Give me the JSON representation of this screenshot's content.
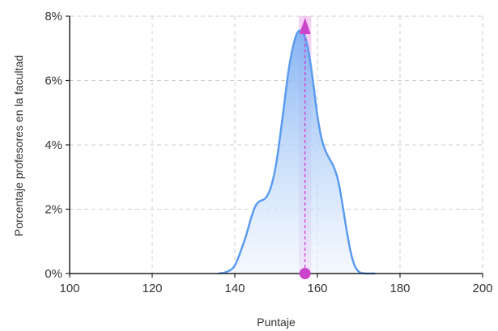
{
  "chart_data": {
    "type": "area",
    "xlabel": "Puntaje",
    "ylabel": "Porcentaje profesores en la facultad",
    "xlim": [
      100,
      200
    ],
    "ylim": [
      0,
      8
    ],
    "x_ticks": [
      "100",
      "120",
      "140",
      "160",
      "180",
      "200"
    ],
    "y_ticks": [
      "0%",
      "2%",
      "4%",
      "6%",
      "8%"
    ],
    "grid": true,
    "series": [
      {
        "x": [
          136,
          138,
          140,
          142,
          143,
          144,
          145,
          146,
          147,
          148,
          149,
          150,
          151,
          152,
          153,
          154,
          155,
          156,
          157,
          158,
          159,
          160,
          161,
          162,
          163,
          164,
          165,
          166,
          167,
          168,
          169,
          170,
          171,
          172,
          174
        ],
        "y": [
          0.0,
          0.05,
          0.25,
          0.9,
          1.3,
          1.75,
          2.1,
          2.25,
          2.3,
          2.45,
          2.8,
          3.4,
          4.3,
          5.3,
          6.3,
          7.0,
          7.45,
          7.55,
          7.35,
          6.8,
          5.9,
          4.9,
          4.2,
          3.8,
          3.55,
          3.3,
          2.9,
          2.2,
          1.4,
          0.7,
          0.25,
          0.06,
          0.01,
          0.0,
          0.0
        ]
      }
    ],
    "marker": {
      "x": 157,
      "y_low": 0,
      "y_high": 7.8,
      "band": [
        155.5,
        158.5
      ]
    },
    "colors": {
      "line": "#5b9bf0",
      "fill_top": "#7fb0f3",
      "fill_bottom": "#eef5fe",
      "marker": "#cc44cc",
      "band": "#e9a9e9",
      "grid": "#cfcfcf",
      "axis": "#222222"
    }
  }
}
